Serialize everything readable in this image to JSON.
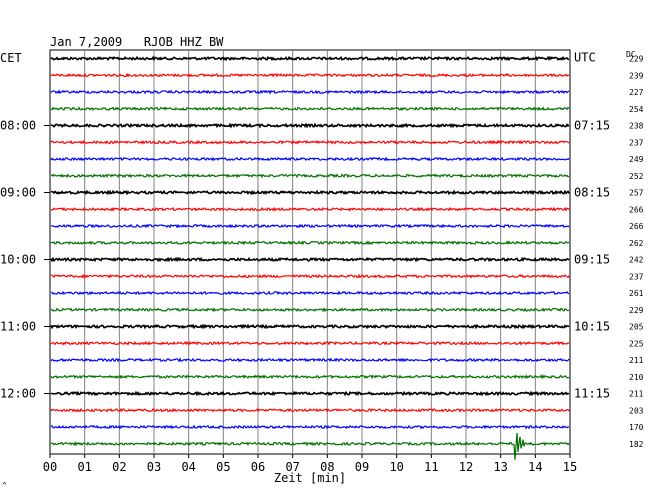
{
  "chart_data": {
    "type": "line",
    "title": "Jan 7,2009   RJOB HHZ BW",
    "left_axis_label": "CET",
    "right_axis_label": "UTC",
    "dc_label": "DC",
    "xlabel": "Zeit [min]",
    "xlim": [
      0,
      15
    ],
    "x_ticks": [
      "00",
      "01",
      "02",
      "03",
      "04",
      "05",
      "06",
      "07",
      "08",
      "09",
      "10",
      "11",
      "12",
      "13",
      "14",
      "15"
    ],
    "left_hour_labels": [
      {
        "trace": 4,
        "label": "08:00"
      },
      {
        "trace": 8,
        "label": "09:00"
      },
      {
        "trace": 12,
        "label": "10:00"
      },
      {
        "trace": 16,
        "label": "11:00"
      },
      {
        "trace": 20,
        "label": "12:00"
      }
    ],
    "right_hour_labels": [
      {
        "trace": 0,
        "label": "UTC"
      },
      {
        "trace": 4,
        "label": "07:15"
      },
      {
        "trace": 8,
        "label": "08:15"
      },
      {
        "trace": 12,
        "label": "09:15"
      },
      {
        "trace": 16,
        "label": "10:15"
      },
      {
        "trace": 20,
        "label": "11:15"
      }
    ],
    "dc_values": [
      "229",
      "239",
      "227",
      "254",
      "238",
      "237",
      "249",
      "252",
      "257",
      "266",
      "266",
      "262",
      "242",
      "237",
      "261",
      "229",
      "205",
      "225",
      "211",
      "210",
      "211",
      "203",
      "170",
      "182"
    ],
    "trace_colors": [
      "#000000",
      "#ff0000",
      "#0000ff",
      "#007000"
    ],
    "event": {
      "trace": 23,
      "minute": 13.4
    }
  },
  "corner_mark": "^"
}
